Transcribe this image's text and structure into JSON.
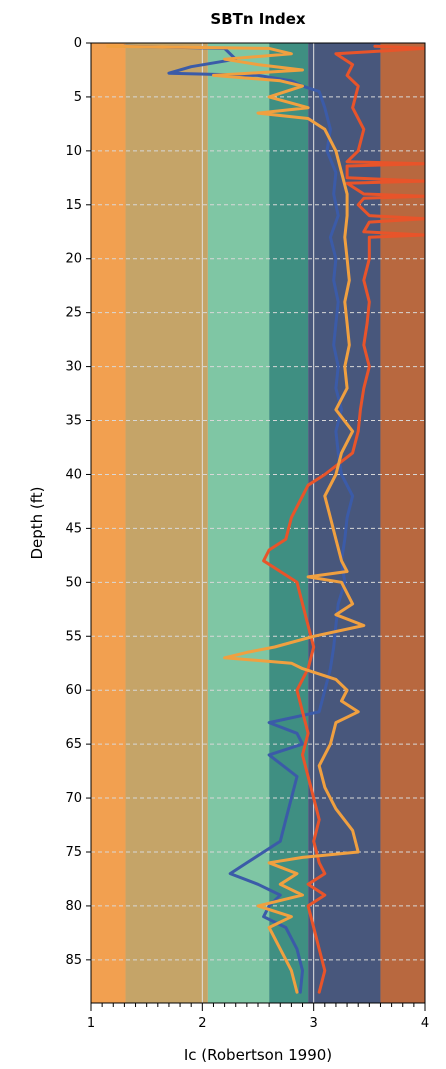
{
  "chart_data": {
    "type": "line",
    "title": "SBTn Index",
    "xlabel": "Ic (Robertson 1990)",
    "ylabel": "Depth (ft)",
    "xlim": [
      1,
      4
    ],
    "ylim": [
      89,
      0
    ],
    "xticks": [
      "1",
      "2",
      "3",
      "4"
    ],
    "yticks": [
      "0",
      "5",
      "10",
      "15",
      "20",
      "25",
      "30",
      "35",
      "40",
      "45",
      "50",
      "55",
      "60",
      "65",
      "70",
      "75",
      "80",
      "85"
    ],
    "grid": true,
    "zones": [
      {
        "from": 1.0,
        "to": 1.31,
        "color": "#f2a050"
      },
      {
        "from": 1.31,
        "to": 2.05,
        "color": "#c5a468"
      },
      {
        "from": 2.05,
        "to": 2.6,
        "color": "#7fc6a4"
      },
      {
        "from": 2.6,
        "to": 2.95,
        "color": "#3f8f82"
      },
      {
        "from": 2.95,
        "to": 3.6,
        "color": "#48577c"
      },
      {
        "from": 3.6,
        "to": 4.0,
        "color": "#b8683f"
      }
    ],
    "series": [
      {
        "color": "#3b5ba8",
        "points": [
          [
            1.3,
            0.3
          ],
          [
            2.2,
            0.5
          ],
          [
            2.3,
            1.5
          ],
          [
            1.9,
            2.2
          ],
          [
            1.7,
            2.8
          ],
          [
            2.5,
            3
          ],
          [
            2.8,
            3.5
          ],
          [
            2.9,
            4
          ],
          [
            3.05,
            4.5
          ],
          [
            3.1,
            6
          ],
          [
            3.15,
            8
          ],
          [
            3.12,
            10
          ],
          [
            3.2,
            12
          ],
          [
            3.18,
            14
          ],
          [
            3.22,
            16
          ],
          [
            3.15,
            18
          ],
          [
            3.2,
            20
          ],
          [
            3.18,
            22
          ],
          [
            3.22,
            24
          ],
          [
            3.2,
            26
          ],
          [
            3.18,
            28
          ],
          [
            3.22,
            30
          ],
          [
            3.2,
            32
          ],
          [
            3.25,
            34
          ],
          [
            3.2,
            36
          ],
          [
            3.22,
            38
          ],
          [
            3.25,
            40
          ],
          [
            3.35,
            42
          ],
          [
            3.3,
            44
          ],
          [
            3.28,
            46
          ],
          [
            3.25,
            48
          ],
          [
            3.28,
            50
          ],
          [
            3.22,
            52
          ],
          [
            3.2,
            54
          ],
          [
            3.18,
            56
          ],
          [
            3.15,
            58
          ],
          [
            3.1,
            60
          ],
          [
            3.05,
            62
          ],
          [
            2.6,
            63
          ],
          [
            2.85,
            64
          ],
          [
            2.9,
            65
          ],
          [
            2.6,
            66
          ],
          [
            2.85,
            68
          ],
          [
            2.8,
            70
          ],
          [
            2.75,
            72
          ],
          [
            2.7,
            74
          ],
          [
            2.55,
            75
          ],
          [
            2.4,
            76
          ],
          [
            2.25,
            77
          ],
          [
            2.5,
            78
          ],
          [
            2.7,
            79
          ],
          [
            2.6,
            80
          ],
          [
            2.55,
            81
          ],
          [
            2.75,
            82
          ],
          [
            2.85,
            84
          ],
          [
            2.9,
            86
          ],
          [
            2.88,
            88
          ]
        ]
      },
      {
        "color": "#e8542a",
        "points": [
          [
            3.55,
            0.3
          ],
          [
            4.0,
            0.5
          ],
          [
            3.2,
            1
          ],
          [
            3.35,
            2
          ],
          [
            3.3,
            3
          ],
          [
            3.4,
            4
          ],
          [
            3.35,
            6
          ],
          [
            3.45,
            8
          ],
          [
            3.4,
            10
          ],
          [
            3.3,
            11
          ],
          [
            4.0,
            11.2
          ],
          [
            3.3,
            11.4
          ],
          [
            3.3,
            12.5
          ],
          [
            4.0,
            12.8
          ],
          [
            3.3,
            13
          ],
          [
            3.45,
            14
          ],
          [
            4.0,
            14.2
          ],
          [
            3.45,
            14.4
          ],
          [
            3.4,
            15
          ],
          [
            3.5,
            16
          ],
          [
            4.0,
            16.3
          ],
          [
            3.5,
            16.6
          ],
          [
            3.45,
            17.5
          ],
          [
            4.0,
            17.8
          ],
          [
            3.5,
            18
          ],
          [
            3.5,
            20
          ],
          [
            3.45,
            22
          ],
          [
            3.5,
            24
          ],
          [
            3.48,
            26
          ],
          [
            3.45,
            28
          ],
          [
            3.5,
            30
          ],
          [
            3.45,
            32
          ],
          [
            3.42,
            34
          ],
          [
            3.4,
            36
          ],
          [
            3.35,
            38
          ],
          [
            3.1,
            40
          ],
          [
            2.95,
            41
          ],
          [
            2.9,
            42
          ],
          [
            2.8,
            44
          ],
          [
            2.75,
            46
          ],
          [
            2.6,
            47
          ],
          [
            2.55,
            48
          ],
          [
            2.7,
            49
          ],
          [
            2.85,
            50
          ],
          [
            2.9,
            52
          ],
          [
            2.95,
            54
          ],
          [
            3.0,
            56
          ],
          [
            2.95,
            58
          ],
          [
            2.85,
            60
          ],
          [
            2.9,
            62
          ],
          [
            2.95,
            64
          ],
          [
            2.9,
            66
          ],
          [
            2.95,
            68
          ],
          [
            3.0,
            70
          ],
          [
            3.05,
            72
          ],
          [
            3.0,
            74
          ],
          [
            3.05,
            76
          ],
          [
            3.1,
            77
          ],
          [
            2.95,
            78
          ],
          [
            3.1,
            79
          ],
          [
            2.95,
            80
          ],
          [
            3.0,
            82
          ],
          [
            3.05,
            84
          ],
          [
            3.1,
            86
          ],
          [
            3.05,
            88
          ]
        ]
      },
      {
        "color": "#f0a040",
        "points": [
          [
            1.15,
            0.3
          ],
          [
            2.6,
            0.5
          ],
          [
            2.8,
            1
          ],
          [
            2.2,
            1.5
          ],
          [
            2.5,
            2
          ],
          [
            2.9,
            2.5
          ],
          [
            2.1,
            3
          ],
          [
            2.7,
            3.5
          ],
          [
            2.9,
            4
          ],
          [
            2.6,
            5
          ],
          [
            2.95,
            6
          ],
          [
            2.5,
            6.5
          ],
          [
            2.95,
            7
          ],
          [
            3.1,
            8
          ],
          [
            3.2,
            10
          ],
          [
            3.25,
            12
          ],
          [
            3.3,
            14
          ],
          [
            3.3,
            16
          ],
          [
            3.28,
            18
          ],
          [
            3.3,
            20
          ],
          [
            3.32,
            22
          ],
          [
            3.28,
            24
          ],
          [
            3.3,
            26
          ],
          [
            3.32,
            28
          ],
          [
            3.28,
            30
          ],
          [
            3.3,
            32
          ],
          [
            3.2,
            34
          ],
          [
            3.35,
            36
          ],
          [
            3.25,
            38
          ],
          [
            3.2,
            40
          ],
          [
            3.1,
            42
          ],
          [
            3.15,
            44
          ],
          [
            3.2,
            46
          ],
          [
            3.25,
            48
          ],
          [
            3.3,
            49
          ],
          [
            2.95,
            49.5
          ],
          [
            3.25,
            50
          ],
          [
            3.35,
            52
          ],
          [
            3.2,
            53
          ],
          [
            3.45,
            54
          ],
          [
            3.0,
            55
          ],
          [
            2.65,
            56
          ],
          [
            2.4,
            56.5
          ],
          [
            2.2,
            57
          ],
          [
            2.8,
            57.5
          ],
          [
            2.9,
            58
          ],
          [
            3.2,
            59
          ],
          [
            3.3,
            60
          ],
          [
            3.25,
            61
          ],
          [
            3.4,
            62
          ],
          [
            3.2,
            63
          ],
          [
            3.15,
            65
          ],
          [
            3.05,
            67
          ],
          [
            3.1,
            69
          ],
          [
            3.2,
            71
          ],
          [
            3.35,
            73
          ],
          [
            3.4,
            75
          ],
          [
            2.9,
            75.5
          ],
          [
            2.6,
            76
          ],
          [
            2.85,
            77
          ],
          [
            2.7,
            78
          ],
          [
            2.9,
            79
          ],
          [
            2.5,
            80
          ],
          [
            2.8,
            81
          ],
          [
            2.6,
            82
          ],
          [
            2.7,
            84
          ],
          [
            2.8,
            86
          ],
          [
            2.85,
            88
          ]
        ]
      }
    ]
  }
}
